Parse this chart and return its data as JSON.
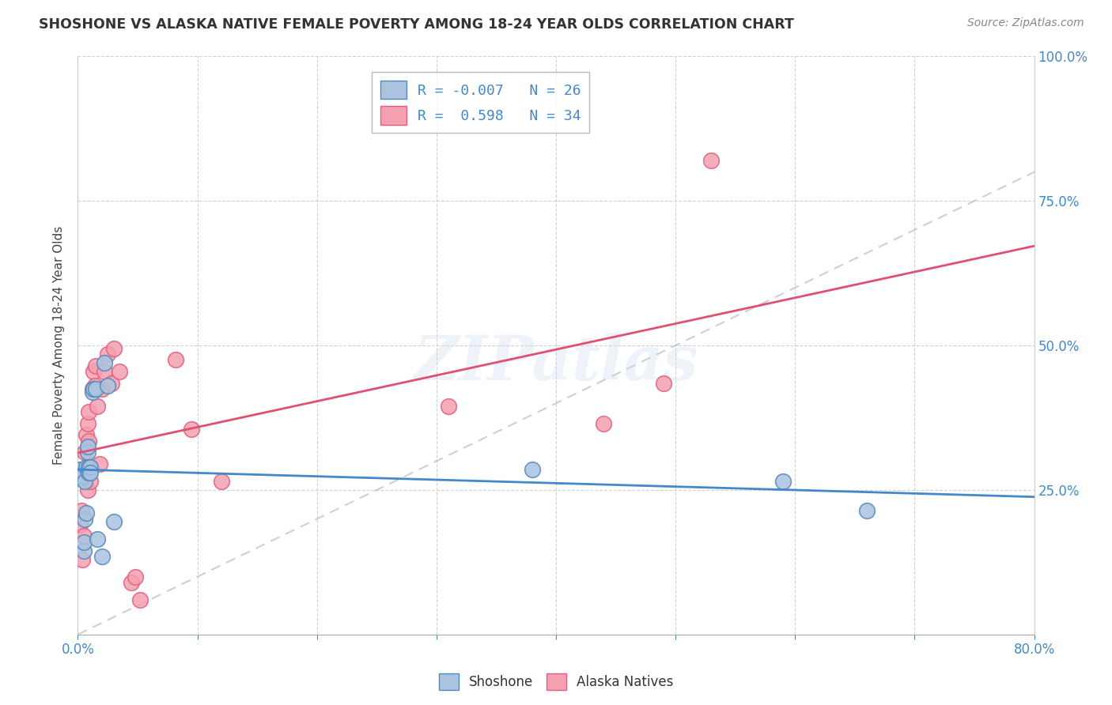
{
  "title": "SHOSHONE VS ALASKA NATIVE FEMALE POVERTY AMONG 18-24 YEAR OLDS CORRELATION CHART",
  "source": "Source: ZipAtlas.com",
  "ylabel": "Female Poverty Among 18-24 Year Olds",
  "xmin": 0.0,
  "xmax": 0.8,
  "ymin": 0.0,
  "ymax": 1.0,
  "xticks": [
    0.0,
    0.1,
    0.2,
    0.3,
    0.4,
    0.5,
    0.6,
    0.7,
    0.8
  ],
  "yticks": [
    0.0,
    0.25,
    0.5,
    0.75,
    1.0
  ],
  "grid_color": "#cccccc",
  "background_color": "#ffffff",
  "shoshone_color": "#aac4e0",
  "alaska_color": "#f4a0b0",
  "shoshone_edge": "#5588bb",
  "alaska_edge": "#e06080",
  "trend_line_color_dashed": "#bbbbbb",
  "trend_shoshone_color": "#4488cc",
  "trend_alaska_color": "#e05070",
  "legend_R_shoshone": "-0.007",
  "legend_N_shoshone": "26",
  "legend_R_alaska": "0.598",
  "legend_N_alaska": "34",
  "watermark": "ZIPatlas",
  "label_color": "#4488cc",
  "shoshone_x": [
    0.002,
    0.003,
    0.004,
    0.005,
    0.005,
    0.006,
    0.006,
    0.007,
    0.007,
    0.008,
    0.008,
    0.009,
    0.009,
    0.01,
    0.01,
    0.012,
    0.013,
    0.015,
    0.016,
    0.02,
    0.022,
    0.025,
    0.03,
    0.38,
    0.59,
    0.66
  ],
  "shoshone_y": [
    0.285,
    0.27,
    0.275,
    0.145,
    0.16,
    0.2,
    0.265,
    0.21,
    0.29,
    0.315,
    0.325,
    0.28,
    0.29,
    0.29,
    0.28,
    0.42,
    0.425,
    0.425,
    0.165,
    0.135,
    0.47,
    0.43,
    0.195,
    0.285,
    0.265,
    0.215
  ],
  "alaska_x": [
    0.002,
    0.003,
    0.004,
    0.005,
    0.006,
    0.006,
    0.007,
    0.008,
    0.008,
    0.009,
    0.009,
    0.01,
    0.012,
    0.013,
    0.014,
    0.015,
    0.016,
    0.018,
    0.02,
    0.022,
    0.025,
    0.028,
    0.03,
    0.035,
    0.045,
    0.048,
    0.052,
    0.082,
    0.095,
    0.12,
    0.31,
    0.44,
    0.49,
    0.53
  ],
  "alaska_y": [
    0.19,
    0.215,
    0.13,
    0.17,
    0.27,
    0.315,
    0.345,
    0.365,
    0.25,
    0.385,
    0.335,
    0.265,
    0.425,
    0.455,
    0.43,
    0.465,
    0.395,
    0.295,
    0.425,
    0.455,
    0.485,
    0.435,
    0.495,
    0.455,
    0.09,
    0.1,
    0.06,
    0.475,
    0.355,
    0.265,
    0.395,
    0.365,
    0.435,
    0.82
  ]
}
